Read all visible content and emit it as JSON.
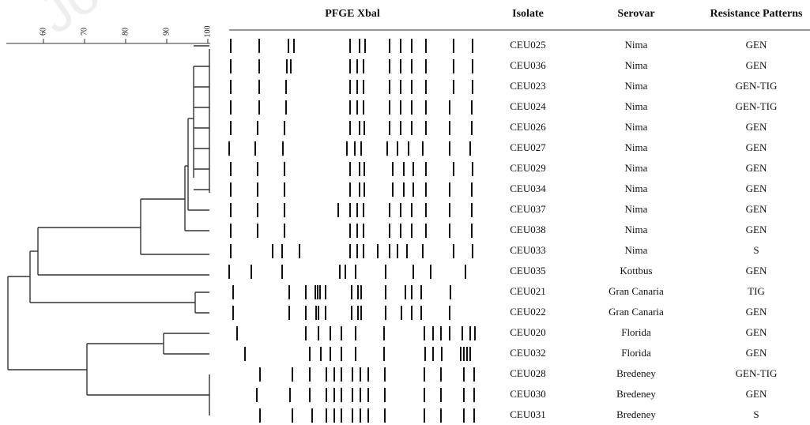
{
  "header": {
    "pfge": "PFGE Xbal",
    "isolate": "Isolate",
    "serovar": "Serovar",
    "resistance": "Resistance Patterns"
  },
  "watermark": "Jou",
  "scale": {
    "range": [
      50,
      100
    ],
    "ticks": [
      60,
      70,
      80,
      90,
      100
    ]
  },
  "rows": [
    {
      "isolate": "CEU025",
      "serovar": "Nima",
      "resistance": "GEN"
    },
    {
      "isolate": "CEU036",
      "serovar": "Nima",
      "resistance": "GEN"
    },
    {
      "isolate": "CEU023",
      "serovar": "Nima",
      "resistance": "GEN-TIG"
    },
    {
      "isolate": "CEU024",
      "serovar": "Nima",
      "resistance": "GEN-TIG"
    },
    {
      "isolate": "CEU026",
      "serovar": "Nima",
      "resistance": "GEN"
    },
    {
      "isolate": "CEU027",
      "serovar": "Nima",
      "resistance": "GEN"
    },
    {
      "isolate": "CEU029",
      "serovar": "Nima",
      "resistance": "GEN"
    },
    {
      "isolate": "CEU034",
      "serovar": "Nima",
      "resistance": "GEN"
    },
    {
      "isolate": "CEU037",
      "serovar": "Nima",
      "resistance": "GEN"
    },
    {
      "isolate": "CEU038",
      "serovar": "Nima",
      "resistance": "GEN"
    },
    {
      "isolate": "CEU033",
      "serovar": "Nima",
      "resistance": "S"
    },
    {
      "isolate": "CEU035",
      "serovar": "Kottbus",
      "resistance": "GEN"
    },
    {
      "isolate": "CEU021",
      "serovar": "Gran Canaria",
      "resistance": "TIG"
    },
    {
      "isolate": "CEU022",
      "serovar": "Gran Canaria",
      "resistance": "GEN"
    },
    {
      "isolate": "CEU020",
      "serovar": "Florida",
      "resistance": "GEN"
    },
    {
      "isolate": "CEU032",
      "serovar": "Florida",
      "resistance": "GEN"
    },
    {
      "isolate": "CEU028",
      "serovar": "Bredeney",
      "resistance": "GEN-TIG"
    },
    {
      "isolate": "CEU030",
      "serovar": "Bredeney",
      "resistance": "GEN"
    },
    {
      "isolate": "CEU031",
      "serovar": "Bredeney",
      "resistance": "S"
    }
  ]
}
